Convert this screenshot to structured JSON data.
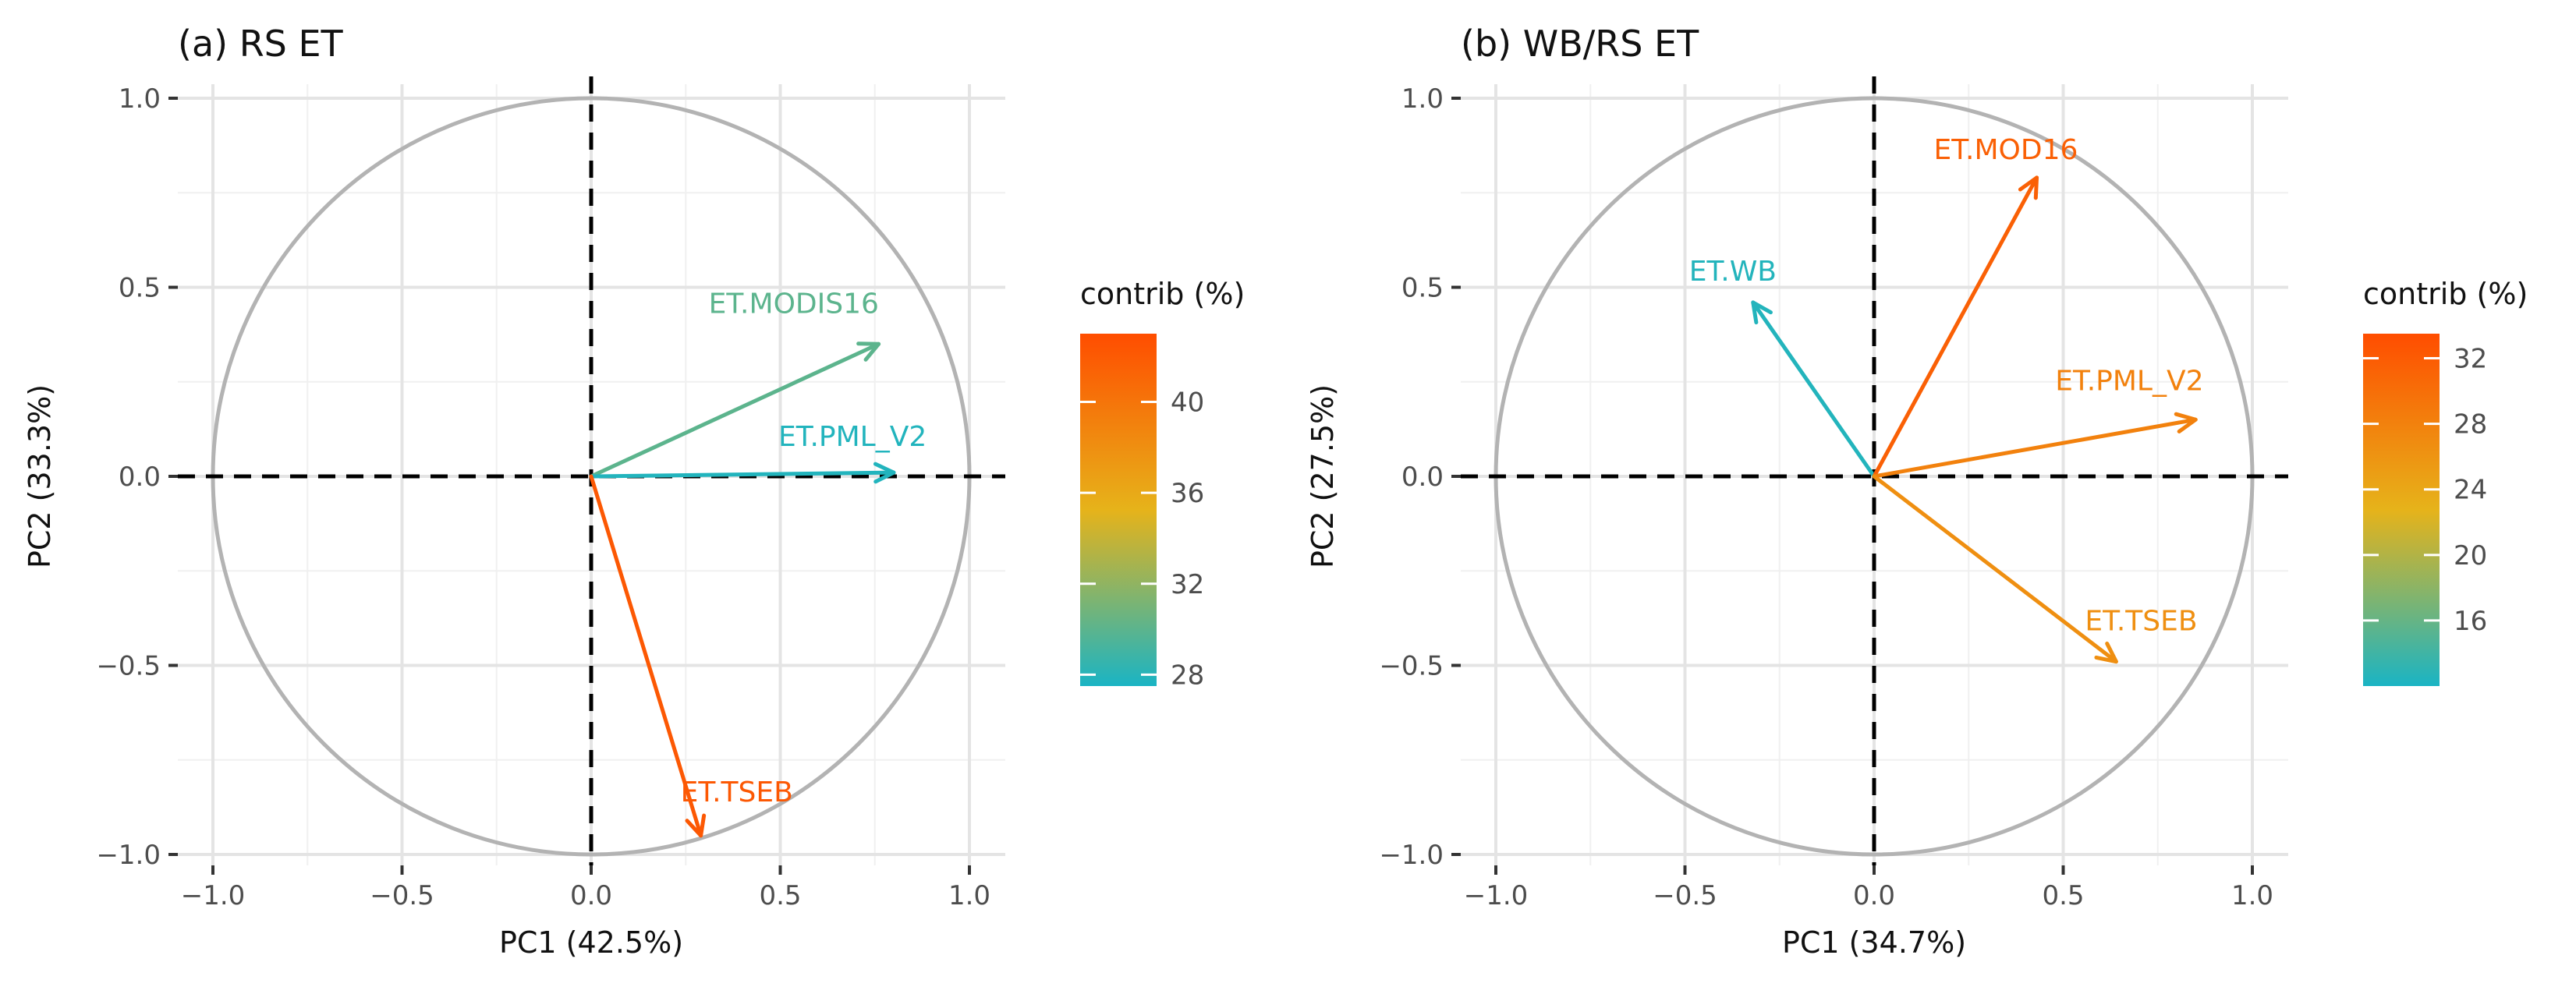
{
  "chart_data": [
    {
      "type": "pca_variable_correlation_circle",
      "title": "(a) RS ET",
      "xlabel": "PC1 (42.5%)",
      "ylabel": "PC2 (33.3%)",
      "xlim": [
        -1.1,
        1.1
      ],
      "ylim": [
        -1.1,
        1.1
      ],
      "x_ticks": [
        -1.0,
        -0.5,
        0.0,
        0.5,
        1.0
      ],
      "y_ticks": [
        -1.0,
        -0.5,
        0.0,
        0.5,
        1.0
      ],
      "x_tick_labels": [
        "−1.0",
        "−0.5",
        "0.0",
        "0.5",
        "1.0"
      ],
      "y_tick_labels": [
        "−1.0",
        "−0.5",
        "0.0",
        "0.5",
        "1.0"
      ],
      "grid": true,
      "color_scale": {
        "title": "contrib (%)",
        "min": 27.5,
        "max": 43,
        "ticks": [
          28,
          32,
          36,
          40
        ],
        "tick_labels": [
          "28",
          "32",
          "36",
          "40"
        ],
        "low_color": "#1ab4c4",
        "mid_color": "#e6b31a",
        "high_color": "#ff4d00"
      },
      "variables": [
        {
          "name": "ET.MODIS16",
          "pc1": 0.76,
          "pc2": 0.35,
          "contrib": 30.0
        },
        {
          "name": "ET.PML_V2",
          "pc1": 0.8,
          "pc2": 0.01,
          "contrib": 27.8
        },
        {
          "name": "ET.TSEB",
          "pc1": 0.29,
          "pc2": -0.95,
          "contrib": 42.2
        }
      ]
    },
    {
      "type": "pca_variable_correlation_circle",
      "title": "(b) WB/RS ET",
      "xlabel": "PC1 (34.7%)",
      "ylabel": "PC2 (27.5%)",
      "xlim": [
        -1.1,
        1.1
      ],
      "ylim": [
        -1.1,
        1.1
      ],
      "x_ticks": [
        -1.0,
        -0.5,
        0.0,
        0.5,
        1.0
      ],
      "y_ticks": [
        -1.0,
        -0.5,
        0.0,
        0.5,
        1.0
      ],
      "x_tick_labels": [
        "−1.0",
        "−0.5",
        "0.0",
        "0.5",
        "1.0"
      ],
      "y_tick_labels": [
        "−1.0",
        "−0.5",
        "0.0",
        "0.5",
        "1.0"
      ],
      "grid": true,
      "color_scale": {
        "title": "contrib (%)",
        "min": 12,
        "max": 33.5,
        "ticks": [
          16,
          20,
          24,
          28,
          32
        ],
        "tick_labels": [
          "16",
          "20",
          "24",
          "28",
          "32"
        ],
        "low_color": "#1ab4c4",
        "mid_color": "#e6b31a",
        "high_color": "#ff4d00"
      },
      "variables": [
        {
          "name": "ET.WB",
          "pc1": -0.32,
          "pc2": 0.46,
          "contrib": 12.5
        },
        {
          "name": "ET.MOD16",
          "pc1": 0.43,
          "pc2": 0.79,
          "contrib": 31.5
        },
        {
          "name": "ET.PML_V2",
          "pc1": 0.85,
          "pc2": 0.15,
          "contrib": 28.0
        },
        {
          "name": "ET.TSEB",
          "pc1": 0.64,
          "pc2": -0.49,
          "contrib": 26.5
        }
      ]
    }
  ]
}
